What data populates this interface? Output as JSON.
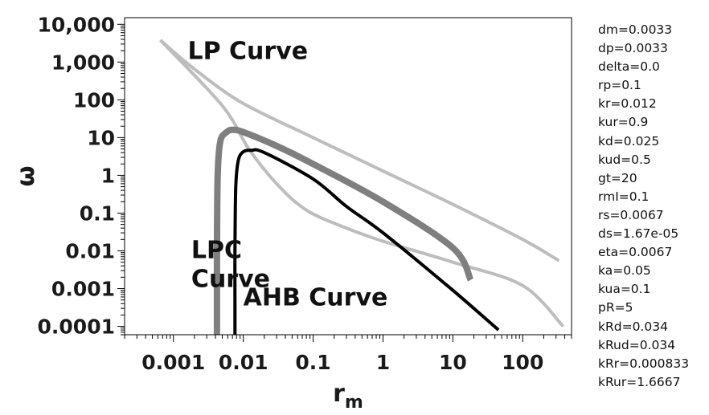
{
  "chart_data": {
    "type": "line",
    "xscale": "log",
    "yscale": "log",
    "xlim": [
      0.0002,
      500
    ],
    "ylim": [
      6e-05,
      15000
    ],
    "grid": false,
    "xlabel": {
      "base": "r",
      "subscript": "m"
    },
    "ylabel": "ω",
    "xticks": [
      {
        "value": 0.001,
        "label": "0.001"
      },
      {
        "value": 0.01,
        "label": "0.01"
      },
      {
        "value": 0.1,
        "label": "0.1"
      },
      {
        "value": 1,
        "label": "1"
      },
      {
        "value": 10,
        "label": "10"
      },
      {
        "value": 100,
        "label": "100"
      }
    ],
    "yticks": [
      {
        "value": 0.0001,
        "label": "0.0001"
      },
      {
        "value": 0.001,
        "label": "0.001"
      },
      {
        "value": 0.01,
        "label": "0.01"
      },
      {
        "value": 0.1,
        "label": "0.1"
      },
      {
        "value": 1,
        "label": "1"
      },
      {
        "value": 10,
        "label": "10"
      },
      {
        "value": 100,
        "label": "100"
      },
      {
        "value": 1000,
        "label": "1,000"
      },
      {
        "value": 10000,
        "label": "10,000"
      }
    ],
    "series": [
      {
        "color": "#bdbdbd",
        "width": 4,
        "points": [
          [
            0.00065,
            3800
          ],
          [
            0.005,
            70
          ],
          [
            0.012,
            5
          ],
          [
            0.03,
            0.6
          ],
          [
            0.08,
            0.12
          ],
          [
            0.3,
            0.04
          ],
          [
            1,
            0.018
          ],
          [
            10,
            0.005
          ],
          [
            100,
            0.0012
          ],
          [
            380,
            0.0001
          ]
        ]
      },
      {
        "color": "#bdbdbd",
        "width": 4,
        "points": [
          [
            0.00065,
            3800
          ],
          [
            0.002,
            650
          ],
          [
            0.01,
            80
          ],
          [
            0.1,
            10
          ],
          [
            1,
            1.3
          ],
          [
            10,
            0.17
          ],
          [
            100,
            0.02
          ],
          [
            330,
            0.0055
          ]
        ]
      },
      {
        "color": "#7f7f7f",
        "width": 8,
        "points": [
          [
            0.0042,
            6e-05
          ],
          [
            0.0042,
            0.0003
          ],
          [
            0.0042,
            0.01
          ],
          [
            0.0043,
            1
          ],
          [
            0.0047,
            8
          ],
          [
            0.0058,
            14
          ],
          [
            0.007,
            16
          ],
          [
            0.01,
            14
          ],
          [
            0.03,
            6
          ],
          [
            0.1,
            2
          ],
          [
            1,
            0.2
          ],
          [
            10,
            0.012
          ],
          [
            18,
            0.0017
          ]
        ]
      },
      {
        "color": "#000000",
        "width": 4,
        "points": [
          [
            0.0076,
            6e-05
          ],
          [
            0.0076,
            0.0003
          ],
          [
            0.0076,
            0.01
          ],
          [
            0.0078,
            0.5
          ],
          [
            0.0085,
            2.5
          ],
          [
            0.01,
            4.2
          ],
          [
            0.013,
            4.6
          ],
          [
            0.02,
            4
          ],
          [
            0.1,
            0.8
          ],
          [
            0.3,
            0.15
          ],
          [
            1,
            0.03
          ],
          [
            10,
            0.0009
          ],
          [
            45,
            8e-05
          ]
        ]
      }
    ],
    "annotations": [
      {
        "text": "LP Curve",
        "x": 0.0016,
        "y": 1200
      },
      {
        "text": "LPC",
        "x": 0.0018,
        "y": 0.0065
      },
      {
        "text": "Curve",
        "x": 0.0018,
        "y": 0.0011
      },
      {
        "text": "AHB Curve",
        "x": 0.01,
        "y": 0.00036
      }
    ]
  },
  "parameters": [
    "dm=0.0033",
    "dp=0.0033",
    "delta=0.0",
    "rp=0.1",
    "kr=0.012",
    "kur=0.9",
    "kd=0.025",
    "kud=0.5",
    "gt=20",
    "rmI=0.1",
    "rs=0.0067",
    "ds=1.67e-05",
    "eta=0.0067",
    "ka=0.05",
    "kua=0.1",
    "pR=5",
    "kRd=0.034",
    "kRud=0.034",
    "kRr=0.000833",
    "kRur=1.6667"
  ]
}
